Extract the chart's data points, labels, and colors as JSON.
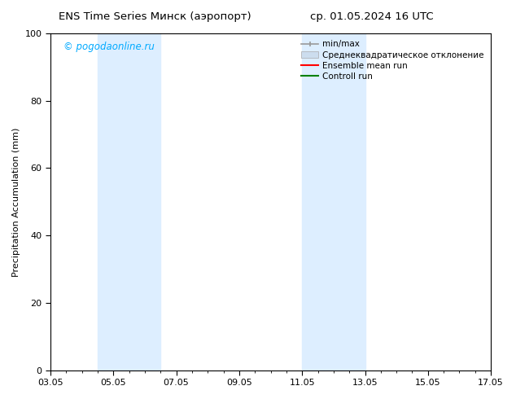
{
  "title_left": "ENS Time Series Минск (аэропорт)",
  "title_right": "ср. 01.05.2024 16 UTC",
  "ylabel": "Precipitation Accumulation (mm)",
  "ylim": [
    0,
    100
  ],
  "yticks": [
    0,
    20,
    40,
    60,
    80,
    100
  ],
  "watermark": "© pogodaonline.ru",
  "watermark_color": "#00aaff",
  "xtick_labels": [
    "03.05",
    "05.05",
    "07.05",
    "09.05",
    "11.05",
    "13.05",
    "15.05",
    "17.05"
  ],
  "xtick_positions": [
    0,
    2,
    4,
    6,
    8,
    10,
    12,
    14
  ],
  "x_min": 0,
  "x_max": 14,
  "shade_regions": [
    {
      "start": 1.5,
      "end": 3.5
    },
    {
      "start": 8.0,
      "end": 10.0
    }
  ],
  "shade_color": "#ddeeff",
  "legend_entries": [
    {
      "label": "min/max",
      "color": "#aaaaaa",
      "type": "line_with_caps"
    },
    {
      "label": "Среднеквадратическое отклонение",
      "color": "#ccddee",
      "type": "rect"
    },
    {
      "label": "Ensemble mean run",
      "color": "red",
      "type": "line"
    },
    {
      "label": "Controll run",
      "color": "green",
      "type": "line"
    }
  ],
  "bg_color": "#ffffff",
  "axis_color": "#000000",
  "font_size_title": 9.5,
  "font_size_legend": 7.5,
  "font_size_ticks": 8,
  "font_size_ylabel": 8,
  "font_size_watermark": 8.5
}
